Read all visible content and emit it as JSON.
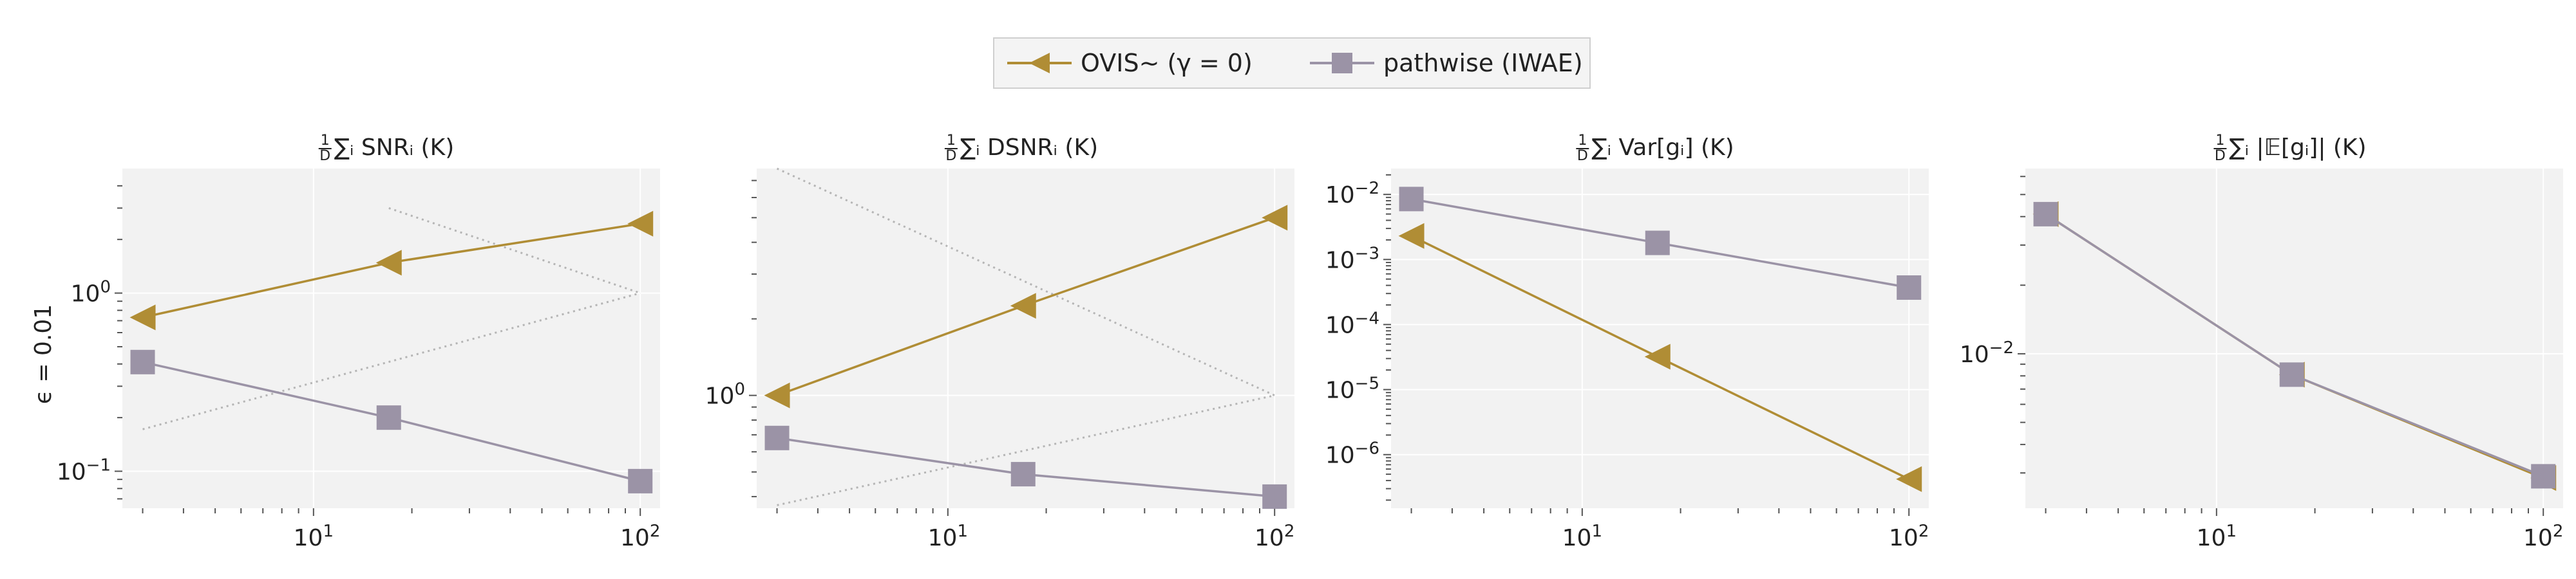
{
  "legend": {
    "entries": [
      {
        "label": "OVIS∼ (γ = 0)",
        "color": "#b08d35",
        "marker": "triangle-left"
      },
      {
        "label": "pathwise (IWAE)",
        "color": "#9b93a6",
        "marker": "square"
      }
    ]
  },
  "row_label": "ϵ = 0.01",
  "panel_titles": [
    {
      "prefix": "1",
      "denominator": "D",
      "text": "∑ᵢ SNRᵢ (K)"
    },
    {
      "prefix": "1",
      "denominator": "D",
      "text": "∑ᵢ DSNRᵢ (K)"
    },
    {
      "prefix": "1",
      "denominator": "D",
      "text": "∑ᵢ Var[gᵢ] (K)"
    },
    {
      "prefix": "1",
      "denominator": "D",
      "text": "∑ᵢ |𝔼[gᵢ]| (K)"
    }
  ],
  "colors": {
    "ovis": "#b08d35",
    "pathwise": "#9b93a6",
    "panel_bg": "#f2f2f2",
    "grid": "#ffffff",
    "reference": "#b5b5b5"
  },
  "chart_data": [
    {
      "type": "line",
      "title": "1/D ∑ᵢ SNRᵢ (K)",
      "xscale": "log",
      "yscale": "log",
      "xlim": [
        2.6,
        115
      ],
      "ylim": [
        0.062,
        5.0
      ],
      "xticks": [
        {
          "value": 10,
          "label": "10^1"
        },
        {
          "value": 100,
          "label": "10^2"
        }
      ],
      "yticks": [
        {
          "value": 0.1,
          "label": "10^-1"
        },
        {
          "value": 1,
          "label": "10^0"
        }
      ],
      "x": [
        3,
        17,
        100
      ],
      "series": [
        {
          "name": "OVIS∼ (γ = 0)",
          "values": [
            0.73,
            1.48,
            2.45
          ],
          "marker": "triangle-left"
        },
        {
          "name": "pathwise (IWAE)",
          "values": [
            0.41,
            0.2,
            0.088
          ],
          "marker": "square"
        }
      ],
      "reference_lines": [
        {
          "x": [
            3,
            100
          ],
          "y": [
            0.172,
            1.0
          ]
        },
        {
          "x": [
            17,
            100
          ],
          "y": [
            3.0,
            1.0
          ]
        }
      ],
      "grid": true
    },
    {
      "type": "line",
      "title": "1/D ∑ᵢ DSNRᵢ (K)",
      "xscale": "log",
      "yscale": "log",
      "xlim": [
        2.6,
        115
      ],
      "ylim": [
        0.36,
        7.8
      ],
      "xticks": [
        {
          "value": 10,
          "label": "10^1"
        },
        {
          "value": 100,
          "label": "10^2"
        }
      ],
      "yticks": [
        {
          "value": 1,
          "label": "10^0"
        }
      ],
      "x": [
        3,
        17,
        100
      ],
      "series": [
        {
          "name": "OVIS∼ (γ = 0)",
          "values": [
            1.0,
            2.25,
            5.0
          ],
          "marker": "triangle-left"
        },
        {
          "name": "pathwise (IWAE)",
          "values": [
            0.68,
            0.49,
            0.4
          ],
          "marker": "square"
        }
      ],
      "reference_lines": [
        {
          "x": [
            3,
            100
          ],
          "y": [
            0.37,
            1.0
          ]
        },
        {
          "x": [
            3,
            100
          ],
          "y": [
            7.8,
            1.0
          ]
        }
      ],
      "grid": true
    },
    {
      "type": "line",
      "title": "1/D ∑ᵢ Var[gᵢ] (K)",
      "xscale": "log",
      "yscale": "log",
      "xlim": [
        2.6,
        115
      ],
      "ylim": [
        1.5e-07,
        0.025
      ],
      "xticks": [
        {
          "value": 10,
          "label": "10^1"
        },
        {
          "value": 100,
          "label": "10^2"
        }
      ],
      "yticks": [
        {
          "value": 1e-06,
          "label": "10^-6"
        },
        {
          "value": 1e-05,
          "label": "10^-5"
        },
        {
          "value": 0.0001,
          "label": "10^-4"
        },
        {
          "value": 0.001,
          "label": "10^-3"
        },
        {
          "value": 0.01,
          "label": "10^-2"
        }
      ],
      "x": [
        3,
        17,
        100
      ],
      "series": [
        {
          "name": "OVIS∼ (γ = 0)",
          "values": [
            0.0023,
            3.2e-05,
            4.2e-07
          ],
          "marker": "triangle-left"
        },
        {
          "name": "pathwise (IWAE)",
          "values": [
            0.0085,
            0.0018,
            0.00037
          ],
          "marker": "square"
        }
      ],
      "reference_lines": [],
      "grid": true
    },
    {
      "type": "line",
      "title": "1/D ∑ᵢ |𝔼[gᵢ]| (K)",
      "xscale": "log",
      "yscale": "log",
      "xlim": [
        2.6,
        115
      ],
      "ylim": [
        0.0021,
        0.065
      ],
      "xticks": [
        {
          "value": 10,
          "label": "10^1"
        },
        {
          "value": 100,
          "label": "10^2"
        }
      ],
      "yticks": [
        {
          "value": 0.01,
          "label": "10^-2"
        }
      ],
      "x": [
        3,
        17,
        100
      ],
      "series": [
        {
          "name": "OVIS∼ (γ = 0)",
          "values": [
            0.041,
            0.0081,
            0.00285
          ],
          "marker": "triangle-left"
        },
        {
          "name": "pathwise (IWAE)",
          "values": [
            0.041,
            0.0081,
            0.0029
          ],
          "marker": "square"
        }
      ],
      "reference_lines": [],
      "grid": true
    }
  ]
}
